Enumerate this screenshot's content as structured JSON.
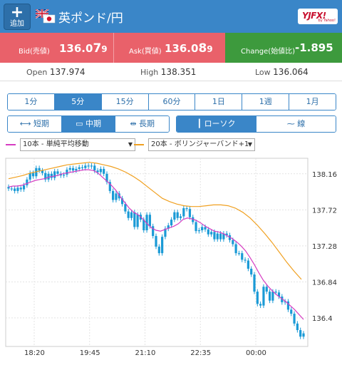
{
  "header": {
    "add_label": "追加",
    "pair_title": "英ポンド/円",
    "logo_text": "YJFX!",
    "logo_sub": "by Yahoo!"
  },
  "quote": {
    "bid": {
      "label": "Bid(売値)",
      "main": "136.0",
      "pip": "7",
      "tail": "9"
    },
    "ask": {
      "label": "Ask(買値)",
      "main": "136.0",
      "pip": "8",
      "tail": "9"
    },
    "change": {
      "label": "Change(始値比)",
      "value": "-1.895"
    }
  },
  "stats": {
    "open_label": "Open",
    "open": "137.974",
    "high_label": "High",
    "high": "138.351",
    "low_label": "Low",
    "low": "136.064"
  },
  "timeframes": [
    "1分",
    "5分",
    "15分",
    "60分",
    "1日",
    "1週",
    "1月"
  ],
  "timeframe_selected": 1,
  "terms": [
    "短期",
    "中期",
    "長期"
  ],
  "term_selected": 1,
  "chart_styles": [
    "ローソク",
    "線"
  ],
  "style_selected": 0,
  "indicators": {
    "ma": {
      "label": "10本 - 単純平均移動",
      "color": "#d63cc2"
    },
    "boll": {
      "label": "20本 - ボリンジャーバンド+1",
      "color": "#f0a020"
    }
  },
  "colors": {
    "accent": "#3a86c8",
    "bid_bg": "#e9616a",
    "change_bg": "#3d9a3d",
    "candle": "#1a9ad6"
  },
  "chart_data": {
    "type": "candlestick",
    "y_ticks": [
      "138.16",
      "137.72",
      "137.28",
      "136.84",
      "136.4"
    ],
    "y_tick_values": [
      138.16,
      137.72,
      137.28,
      136.84,
      136.4
    ],
    "ylim": [
      136.05,
      138.35
    ],
    "x_ticks": [
      "18:20",
      "19:45",
      "21:10",
      "22:35",
      "00:00"
    ],
    "close": [
      137.98,
      137.98,
      137.95,
      137.99,
      137.97,
      138.02,
      138.09,
      138.17,
      138.13,
      138.23,
      138.2,
      138.17,
      138.09,
      138.16,
      138.11,
      138.19,
      138.16,
      138.14,
      138.15,
      138.21,
      138.23,
      138.2,
      138.22,
      138.24,
      138.23,
      138.26,
      138.25,
      138.26,
      138.2,
      138.18,
      138.22,
      138.16,
      138.06,
      137.95,
      137.84,
      137.92,
      137.86,
      137.79,
      137.7,
      137.62,
      137.69,
      137.51,
      137.66,
      137.6,
      137.47,
      137.66,
      137.52,
      137.4,
      137.27,
      137.19,
      137.39,
      137.49,
      137.53,
      137.6,
      137.69,
      137.62,
      137.64,
      137.74,
      137.73,
      137.63,
      137.57,
      137.46,
      137.47,
      137.51,
      137.48,
      137.42,
      137.45,
      137.36,
      137.43,
      137.36,
      137.43,
      137.41,
      137.35,
      137.3,
      137.19,
      137.19,
      137.11,
      137.1,
      137.0,
      136.93,
      136.72,
      136.57,
      136.55,
      136.78,
      136.72,
      136.61,
      136.72,
      136.71,
      136.66,
      136.59,
      136.6,
      136.5,
      136.45,
      136.33,
      136.25,
      136.17,
      136.21
    ],
    "ma10": [
      138.0,
      138.01,
      138.01,
      138.02,
      138.04,
      138.06,
      138.08,
      138.09,
      138.1,
      138.12,
      138.13,
      138.14,
      138.16,
      138.17,
      138.18,
      138.19,
      138.2,
      138.21,
      138.21,
      138.2,
      138.17,
      138.12,
      138.07,
      138.02,
      137.96,
      137.88,
      137.81,
      137.74,
      137.69,
      137.66,
      137.61,
      137.55,
      137.5,
      137.47,
      137.46,
      137.48,
      137.5,
      137.52,
      137.55,
      137.6,
      137.62,
      137.61,
      137.59,
      137.56,
      137.52,
      137.49,
      137.46,
      137.45,
      137.43,
      137.4,
      137.37,
      137.33,
      137.28,
      137.22,
      137.14,
      137.05,
      136.95,
      136.86,
      136.79,
      136.73,
      136.68,
      136.64,
      136.6,
      136.55,
      136.5,
      136.44,
      136.38
    ],
    "bb_upper": [
      138.1,
      138.12,
      138.14,
      138.17,
      138.19,
      138.21,
      138.23,
      138.25,
      138.27,
      138.28,
      138.29,
      138.3,
      138.29,
      138.27,
      138.25,
      138.22,
      138.18,
      138.13,
      138.07,
      138.0,
      137.93,
      137.86,
      137.82,
      137.79,
      137.77,
      137.76,
      137.76,
      137.77,
      137.78,
      137.78,
      137.77,
      137.74,
      137.69,
      137.62,
      137.53,
      137.43,
      137.32,
      137.2,
      137.08,
      136.97,
      136.87
    ]
  }
}
